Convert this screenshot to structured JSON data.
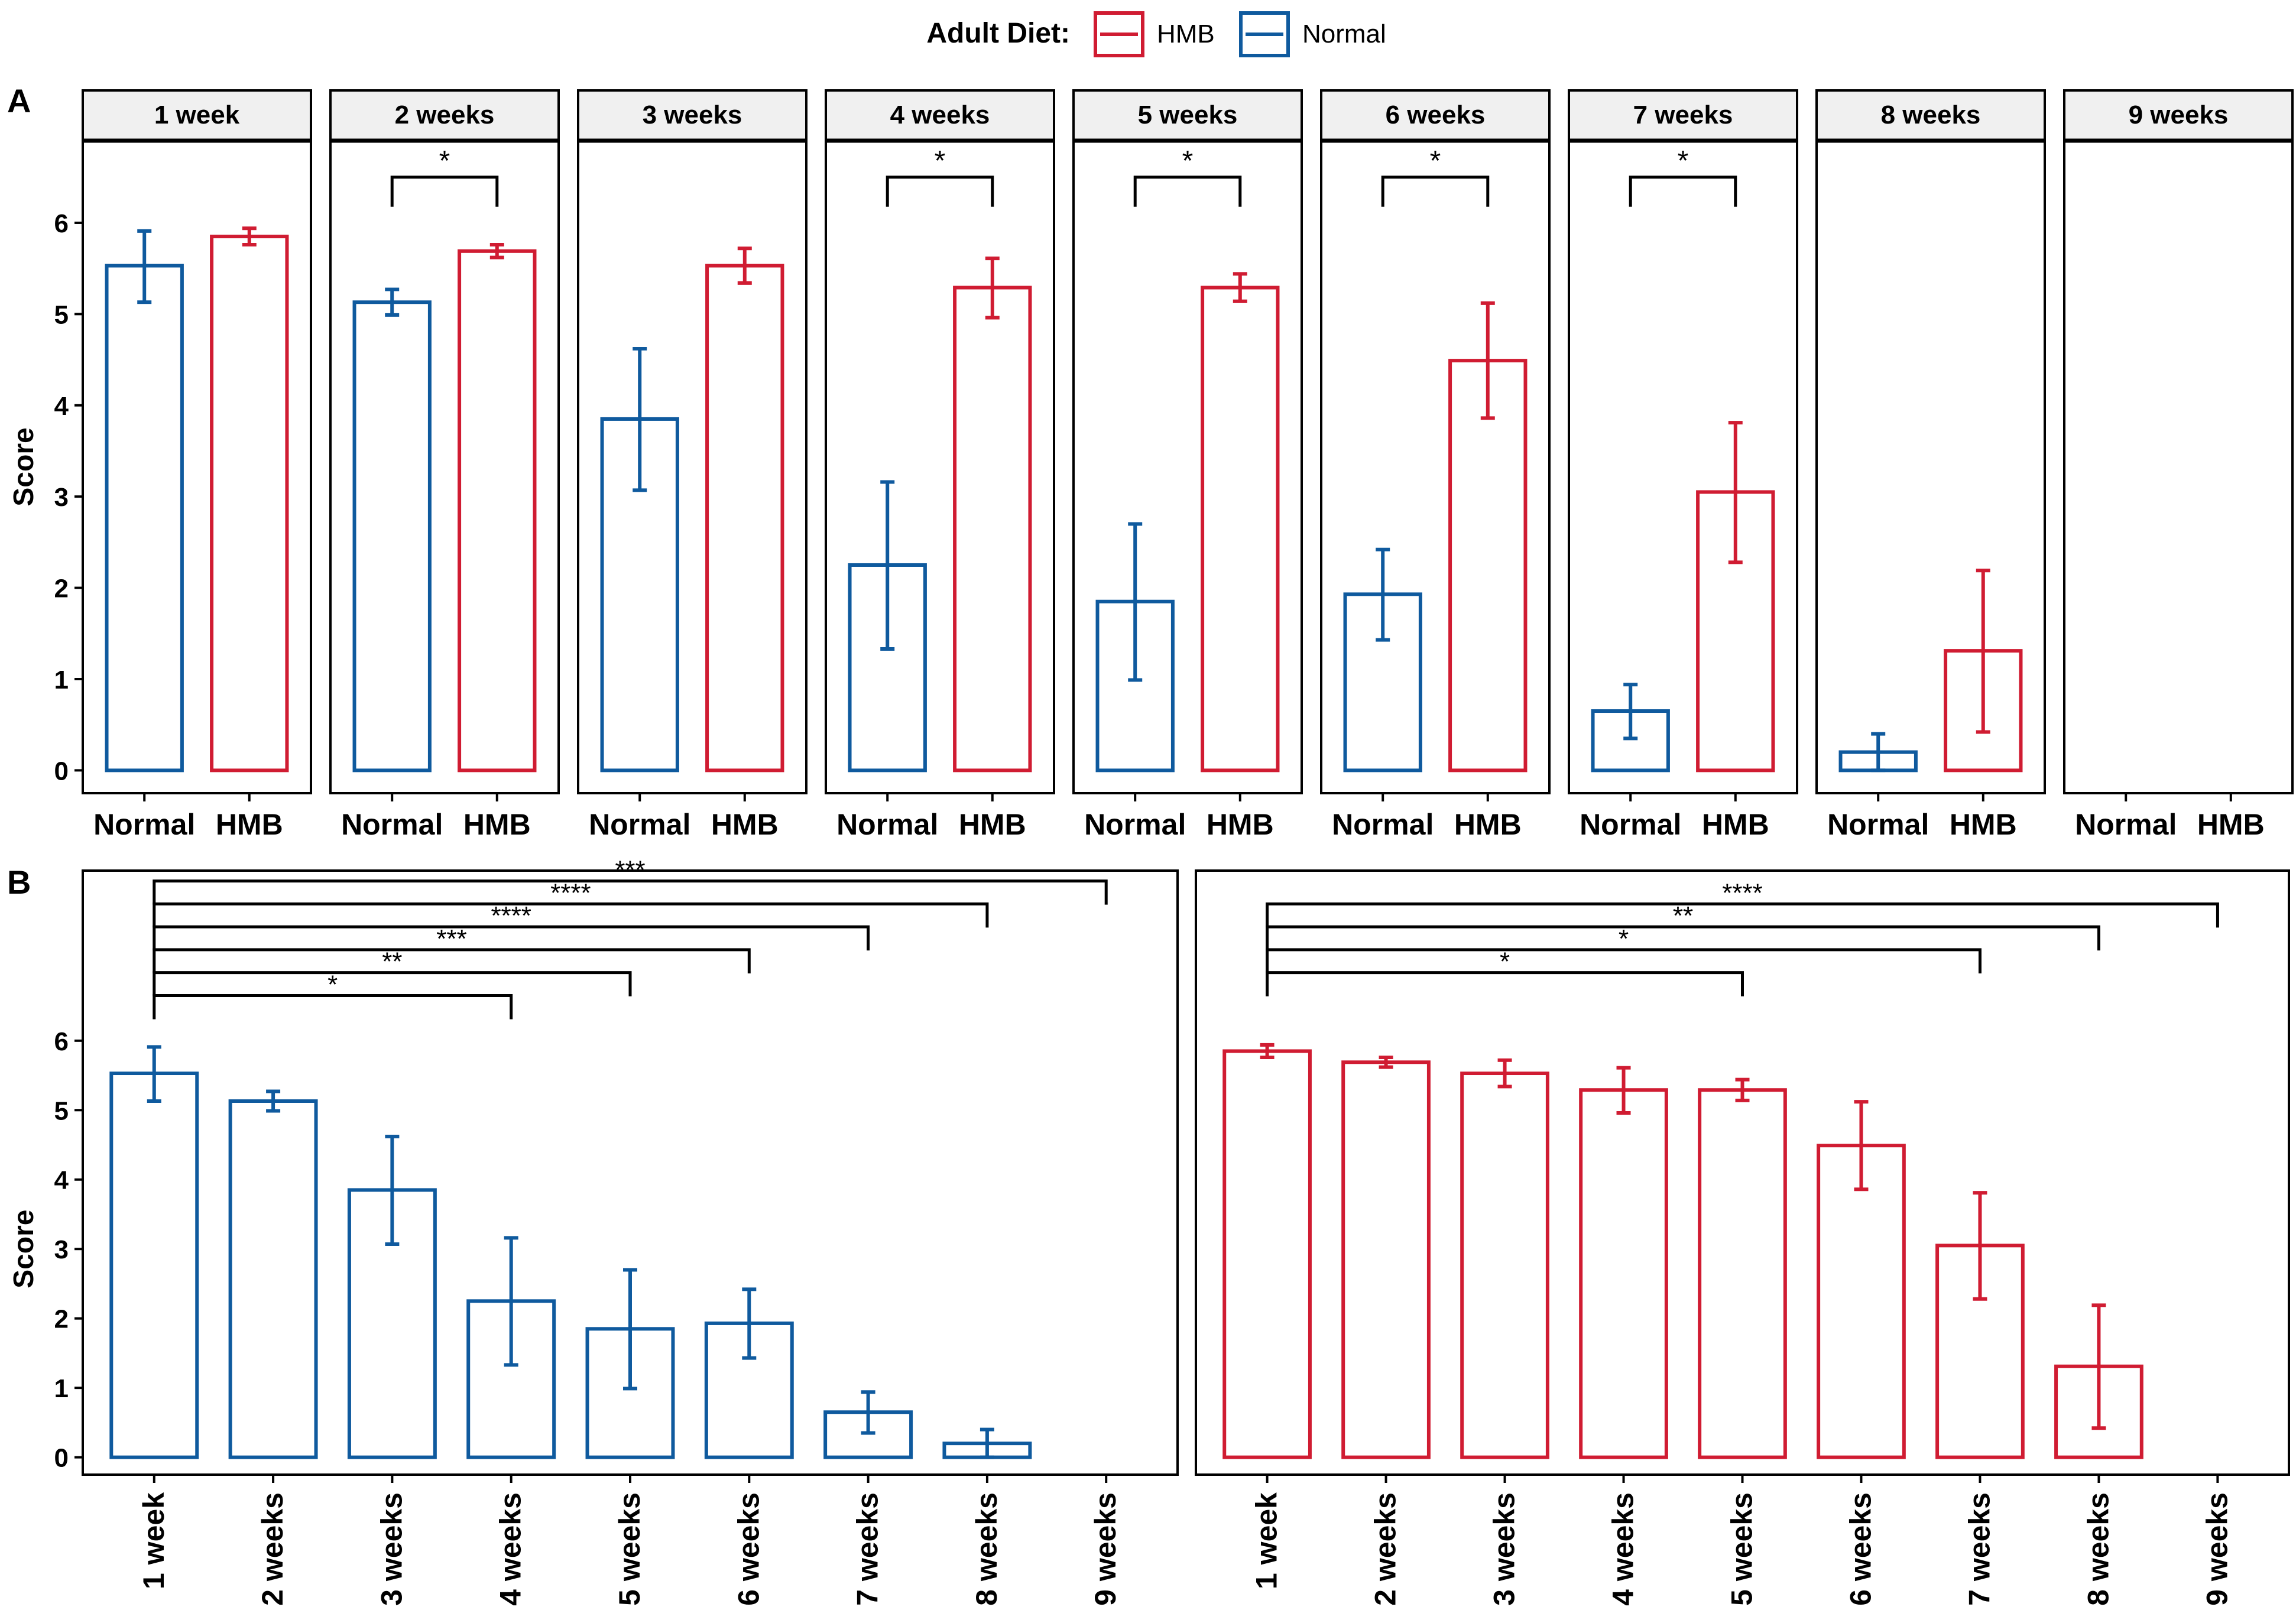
{
  "legend": {
    "title": "Adult Diet:",
    "items": [
      {
        "label": "HMB",
        "color": "#D01C32"
      },
      {
        "label": "Normal",
        "color": "#0F5A9E"
      }
    ]
  },
  "colors": {
    "Normal": "#0F5A9E",
    "HMB": "#D01C32"
  },
  "chart_data": [
    {
      "panel": "A",
      "type": "bar",
      "facet_by": "week",
      "ylabel": "Score",
      "ylim": [
        -0.25,
        6.9
      ],
      "yticks": [
        0,
        1,
        2,
        3,
        4,
        5,
        6
      ],
      "categories": [
        "Normal",
        "HMB"
      ],
      "facets": [
        {
          "label": "1 week",
          "values": [
            5.53,
            5.85
          ],
          "errors": [
            [
              5.13,
              5.91
            ],
            [
              5.76,
              5.94
            ]
          ],
          "sig": ""
        },
        {
          "label": "2 weeks",
          "values": [
            5.13,
            5.69
          ],
          "errors": [
            [
              4.99,
              5.27
            ],
            [
              5.62,
              5.76
            ]
          ],
          "sig": "*"
        },
        {
          "label": "3 weeks",
          "values": [
            3.85,
            5.53
          ],
          "errors": [
            [
              3.07,
              4.62
            ],
            [
              5.34,
              5.72
            ]
          ],
          "sig": ""
        },
        {
          "label": "4 weeks",
          "values": [
            2.25,
            5.29
          ],
          "errors": [
            [
              1.33,
              3.16
            ],
            [
              4.96,
              5.61
            ]
          ],
          "sig": "*"
        },
        {
          "label": "5 weeks",
          "values": [
            1.85,
            5.29
          ],
          "errors": [
            [
              0.99,
              2.7
            ],
            [
              5.14,
              5.44
            ]
          ],
          "sig": "*"
        },
        {
          "label": "6 weeks",
          "values": [
            1.93,
            4.49
          ],
          "errors": [
            [
              1.43,
              2.42
            ],
            [
              3.86,
              5.12
            ]
          ],
          "sig": "*"
        },
        {
          "label": "7 weeks",
          "values": [
            0.65,
            3.05
          ],
          "errors": [
            [
              0.35,
              0.94
            ],
            [
              2.28,
              3.81
            ]
          ],
          "sig": "*"
        },
        {
          "label": "8 weeks",
          "values": [
            0.2,
            1.31
          ],
          "errors": [
            [
              0.0,
              0.4
            ],
            [
              0.42,
              2.19
            ]
          ],
          "sig": ""
        },
        {
          "label": "9 weeks",
          "values": [
            0.0,
            0.0
          ],
          "errors": null,
          "sig": ""
        }
      ]
    },
    {
      "panel": "B",
      "type": "bar",
      "ylabel": "Score",
      "ylim": [
        -0.25,
        8.45
      ],
      "yticks": [
        0,
        1,
        2,
        3,
        4,
        5,
        6
      ],
      "categories": [
        "1 week",
        "2 weeks",
        "3 weeks",
        "4 weeks",
        "5 weeks",
        "6 weeks",
        "7 weeks",
        "8 weeks",
        "9 weeks"
      ],
      "series": [
        {
          "name": "Normal",
          "values": [
            5.53,
            5.13,
            3.85,
            2.25,
            1.85,
            1.93,
            0.65,
            0.2,
            0.0
          ],
          "errors": [
            [
              5.13,
              5.91
            ],
            [
              4.99,
              5.27
            ],
            [
              3.07,
              4.62
            ],
            [
              1.33,
              3.16
            ],
            [
              0.99,
              2.7
            ],
            [
              1.43,
              2.42
            ],
            [
              0.35,
              0.94
            ],
            [
              0.0,
              0.4
            ],
            null
          ],
          "comparisons": [
            {
              "from": 0,
              "to": 3,
              "label": "*",
              "y": 6.65
            },
            {
              "from": 0,
              "to": 4,
              "label": "**",
              "y": 6.98
            },
            {
              "from": 0,
              "to": 5,
              "label": "***",
              "y": 7.31
            },
            {
              "from": 0,
              "to": 6,
              "label": "****",
              "y": 7.64
            },
            {
              "from": 0,
              "to": 7,
              "label": "****",
              "y": 7.97
            },
            {
              "from": 0,
              "to": 8,
              "label": "***",
              "y": 8.3
            }
          ]
        },
        {
          "name": "HMB",
          "values": [
            5.85,
            5.69,
            5.53,
            5.29,
            5.29,
            4.49,
            3.05,
            1.31,
            0.0
          ],
          "errors": [
            [
              5.76,
              5.94
            ],
            [
              5.62,
              5.76
            ],
            [
              5.34,
              5.72
            ],
            [
              4.96,
              5.61
            ],
            [
              5.14,
              5.44
            ],
            [
              3.86,
              5.12
            ],
            [
              2.28,
              3.81
            ],
            [
              0.42,
              2.19
            ],
            null
          ],
          "comparisons": [
            {
              "from": 0,
              "to": 4,
              "label": "*",
              "y": 6.98
            },
            {
              "from": 0,
              "to": 6,
              "label": "*",
              "y": 7.31
            },
            {
              "from": 0,
              "to": 7,
              "label": "**",
              "y": 7.64
            },
            {
              "from": 0,
              "to": 8,
              "label": "****",
              "y": 7.97
            }
          ]
        }
      ]
    }
  ],
  "panel_labels": [
    "A",
    "B"
  ]
}
